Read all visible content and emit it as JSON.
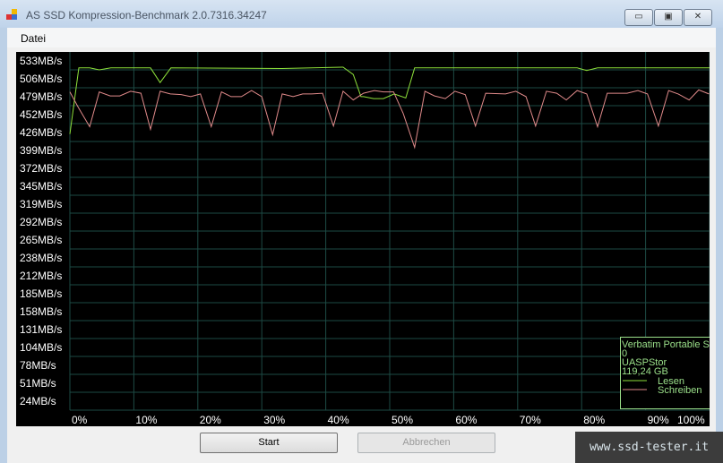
{
  "window": {
    "title": "AS SSD Kompression-Benchmark 2.0.7316.34247",
    "minimize": "▭",
    "maximize": "▣",
    "close": "✕"
  },
  "menu": {
    "items": [
      {
        "label": "Datei"
      }
    ]
  },
  "chart_data": {
    "type": "line",
    "title": "",
    "xlabel": "",
    "ylabel": "",
    "grid": true,
    "xlim": [
      0,
      100
    ],
    "ylim": [
      0,
      546
    ],
    "background": "#000000",
    "grid_color": "#1d4a44",
    "label_color": "#ffffff",
    "y_ticks": [
      "533MB/s",
      "506MB/s",
      "479MB/s",
      "452MB/s",
      "426MB/s",
      "399MB/s",
      "372MB/s",
      "345MB/s",
      "319MB/s",
      "292MB/s",
      "265MB/s",
      "238MB/s",
      "212MB/s",
      "185MB/s",
      "158MB/s",
      "131MB/s",
      "104MB/s",
      "78MB/s",
      "51MB/s",
      "24MB/s"
    ],
    "x_ticks": [
      "0%",
      "10%",
      "20%",
      "30%",
      "40%",
      "50%",
      "60%",
      "70%",
      "80%",
      "90%",
      "100%"
    ],
    "legend": {
      "placement": "bottom-right",
      "device": "Verbatim Portable S",
      "line2": "0",
      "driver": "UASPStor",
      "capacity": "119,24 GB",
      "color": "#9be08a"
    },
    "series": [
      {
        "name": "Lesen",
        "color": "#8ee03a",
        "x": [
          0,
          1.4,
          3.1,
          4.6,
          6.4,
          12.6,
          14.1,
          15.8,
          33.2,
          42.7,
          44.3,
          45.5,
          45.9,
          47.5,
          49,
          50.7,
          52.5,
          53.9,
          79.3,
          80.8,
          82.5,
          100
        ],
        "y": [
          437,
          536,
          536,
          533,
          536,
          536,
          514,
          536,
          535,
          537,
          526,
          493,
          493,
          490,
          490,
          497,
          491,
          536,
          536,
          532,
          536,
          536
        ]
      },
      {
        "name": "Schreiben",
        "color": "#e08a8a",
        "x": [
          0,
          1.3,
          3.1,
          4.6,
          6.3,
          7.8,
          9.5,
          11.1,
          12.6,
          14.1,
          15.7,
          17.4,
          18.9,
          20.4,
          22.1,
          23.7,
          25.2,
          26.8,
          28.4,
          30,
          31.7,
          33.2,
          34.9,
          36.4,
          37.8,
          39.5,
          41.2,
          42.7,
          44.3,
          45.9,
          47.6,
          49,
          50.6,
          52.1,
          53.9,
          55.5,
          57,
          58.7,
          60.2,
          61.8,
          63.4,
          65,
          68.1,
          69.7,
          71.3,
          72.8,
          74.5,
          76.1,
          77.6,
          79.3,
          80.8,
          82.5,
          84,
          87.1,
          88.8,
          90.3,
          92,
          93.6,
          95.1,
          96.8,
          98.3,
          99.9
        ],
        "y": [
          500,
          477,
          448,
          500,
          494,
          494,
          501,
          498,
          444,
          501,
          497,
          496,
          493,
          497,
          448,
          500,
          493,
          493,
          502,
          493,
          436,
          497,
          493,
          497,
          497,
          498,
          449,
          501,
          488,
          498,
          502,
          500,
          500,
          468,
          417,
          501,
          494,
          490,
          501,
          496,
          449,
          498,
          497,
          501,
          493,
          449,
          501,
          498,
          488,
          502,
          497,
          448,
          498,
          498,
          502,
          497,
          449,
          502,
          497,
          488,
          503,
          497
        ]
      }
    ]
  },
  "buttons": {
    "start": "Start",
    "cancel": "Abbrechen"
  },
  "watermark": "www.ssd-tester.it"
}
